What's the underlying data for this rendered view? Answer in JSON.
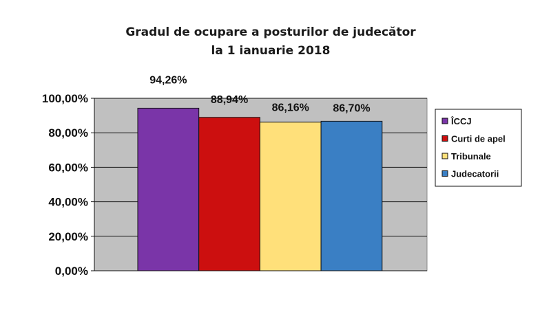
{
  "chart_data": {
    "type": "bar",
    "title_lines": [
      "Gradul de ocupare a posturilor de judecător",
      "la 1 ianuarie 2018"
    ],
    "categories": [
      "ÎCCJ",
      "Curti de apel",
      "Tribunale",
      "Judecatorii"
    ],
    "values": [
      94.26,
      88.94,
      86.16,
      86.7
    ],
    "value_labels": [
      "94,26%",
      "88,94%",
      "86,16%",
      "86,70%"
    ],
    "colors": [
      "#7a35a8",
      "#cc0f0f",
      "#ffe07a",
      "#3a7fc4"
    ],
    "plot_background": "#c0c0c0",
    "ylim": [
      0,
      100
    ],
    "y_ticks": [
      "0,00%",
      "20,00%",
      "40,00%",
      "60,00%",
      "80,00%",
      "100,00%"
    ],
    "y_tick_values": [
      0,
      20,
      40,
      60,
      80,
      100
    ],
    "grid": true,
    "legend": {
      "position": "right",
      "entries": [
        "ÎCCJ",
        "Curti de apel",
        "Tribunale",
        "Judecatorii"
      ]
    }
  }
}
